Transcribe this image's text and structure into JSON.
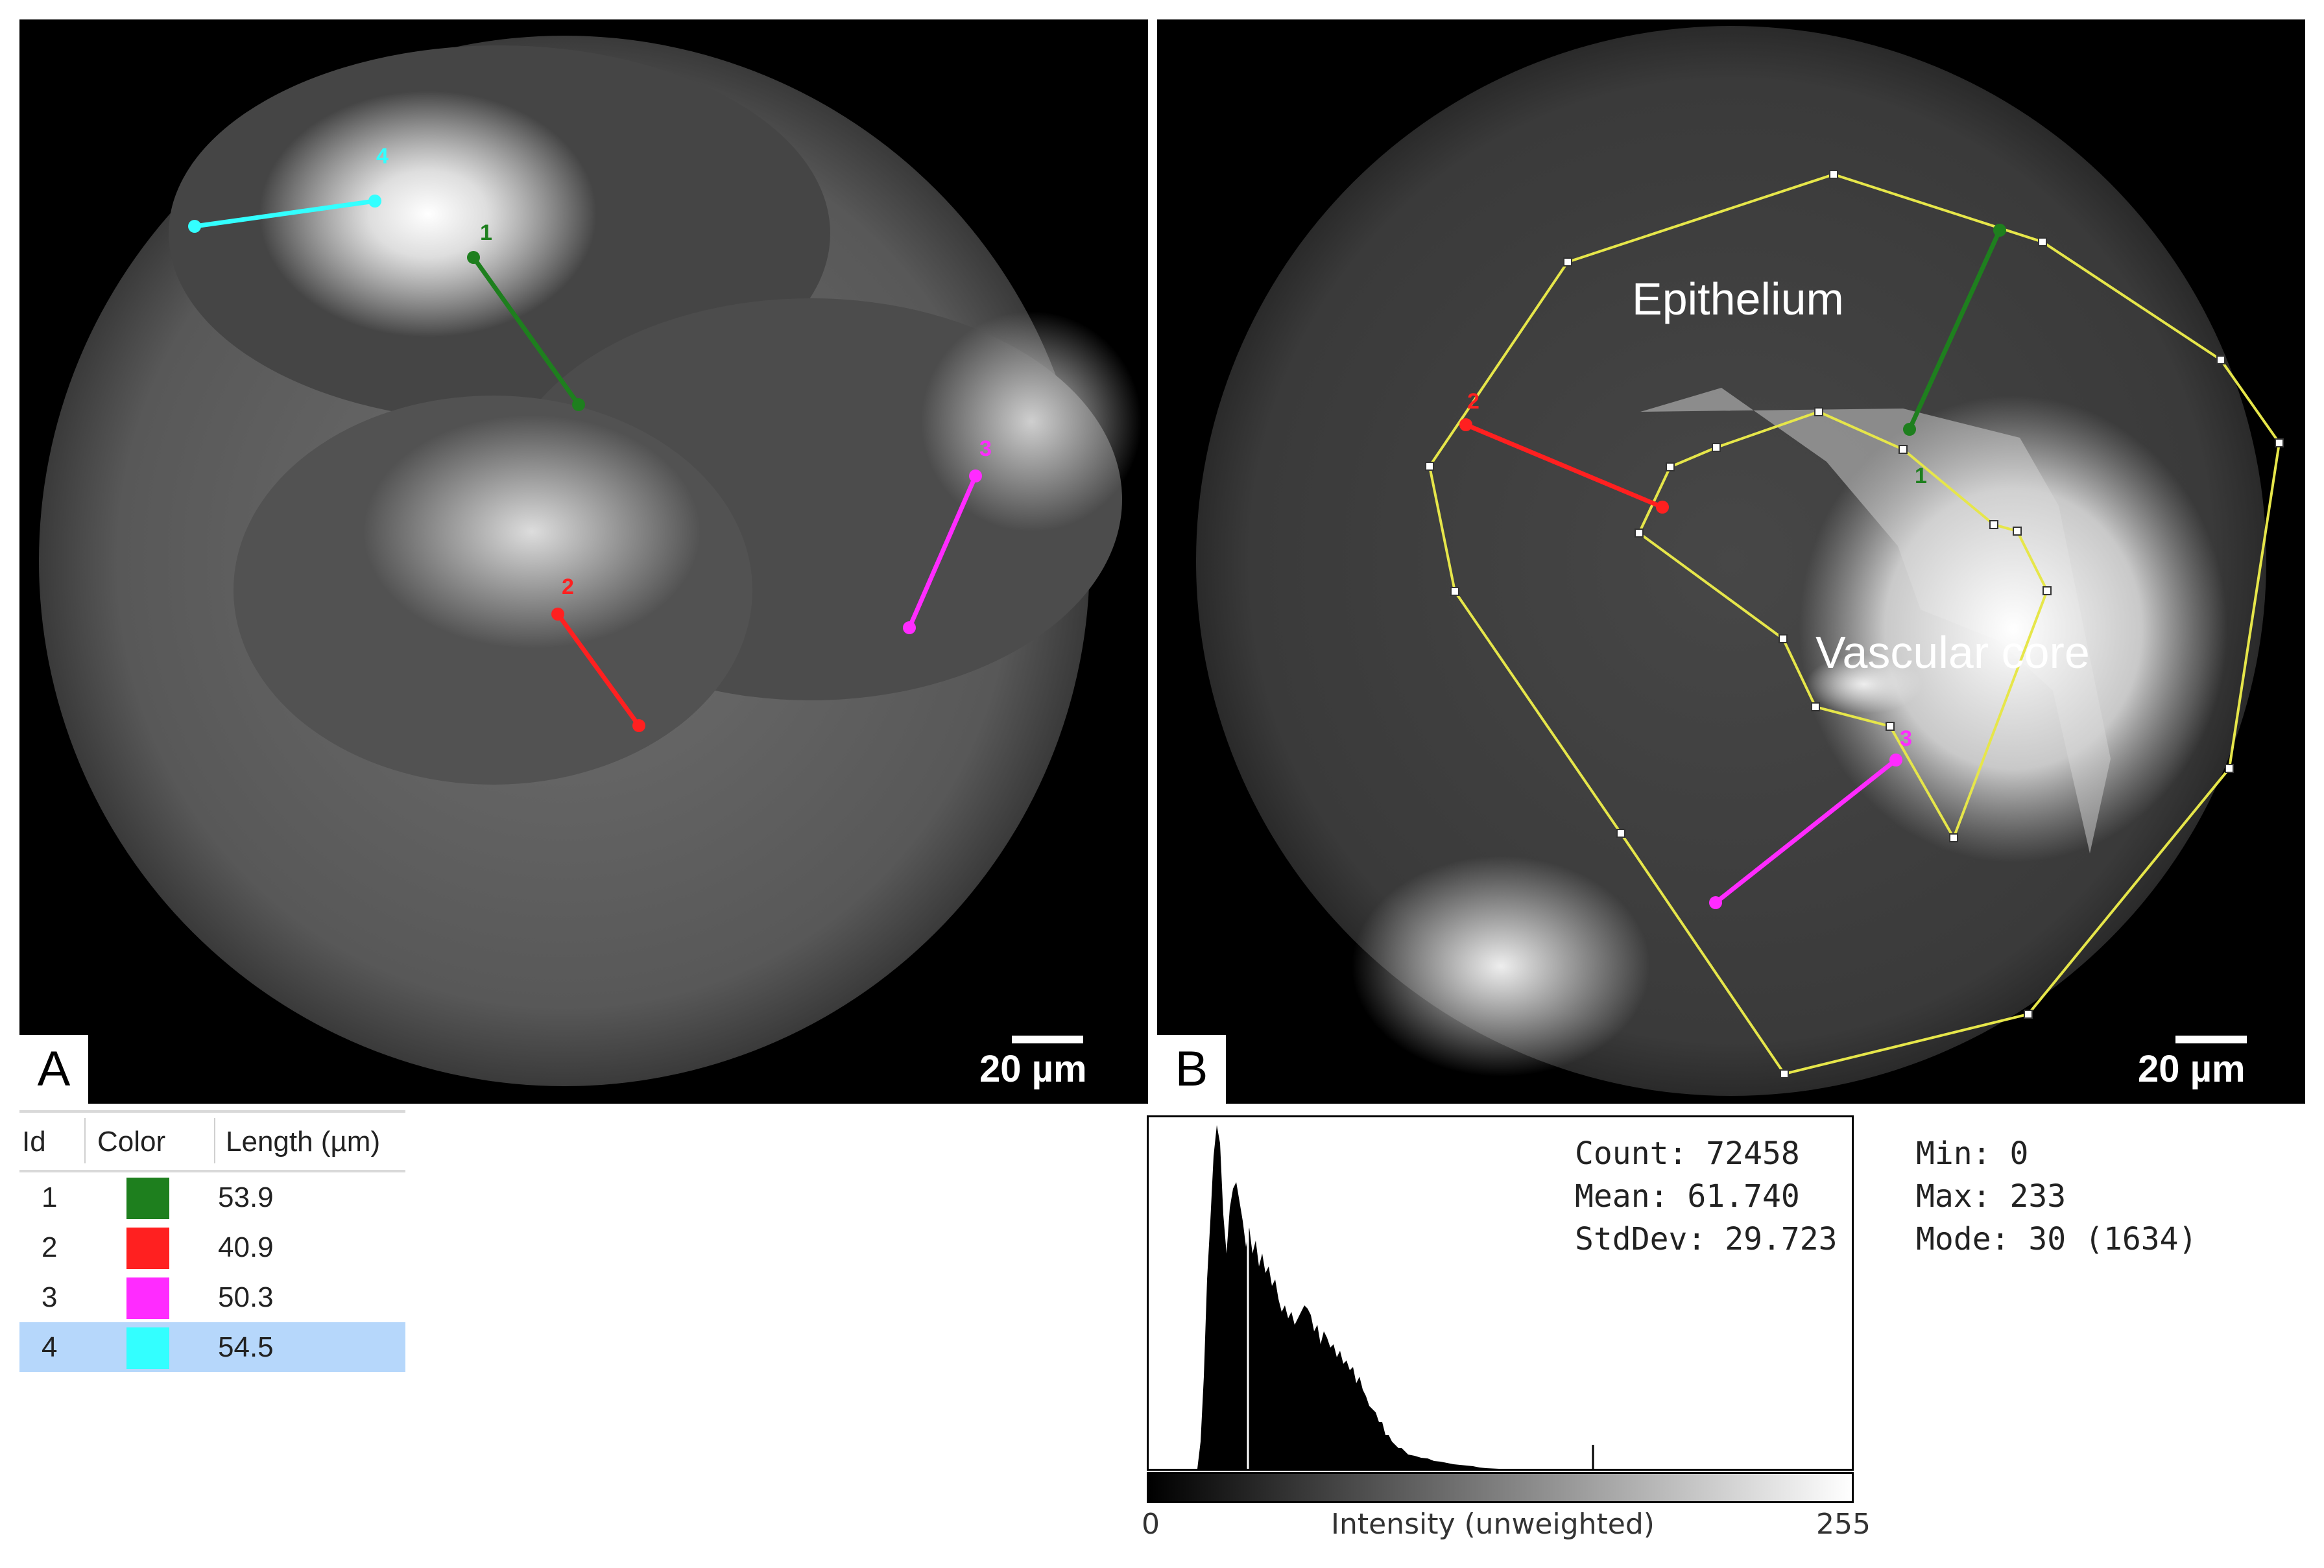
{
  "panels": {
    "a": {
      "letter": "A",
      "scale_label": "20 µm"
    },
    "b": {
      "letter": "B",
      "scale_label": "20 µm",
      "regions": {
        "epithelium": "Epithelium",
        "vascular_core": "Vascular core"
      }
    }
  },
  "measurements": {
    "headers": {
      "id": "Id",
      "color": "Color",
      "length": "Length (µm)"
    },
    "rows": [
      {
        "id": "1",
        "color": "#1e7f1e",
        "length": "53.9"
      },
      {
        "id": "2",
        "color": "#ff2020",
        "length": "40.9"
      },
      {
        "id": "3",
        "color": "#ff2bff",
        "length": "50.3"
      },
      {
        "id": "4",
        "color": "#33ffff",
        "length": "54.5"
      }
    ],
    "selected_row": "4"
  },
  "histogram": {
    "axis_min": "0",
    "axis_max": "255",
    "axis_label": "Intensity (unweighted)",
    "stats": {
      "count": "Count: 72458",
      "mean": "Mean: 61.740",
      "stddev": "StdDev: 29.723",
      "min": "Min: 0",
      "max": "Max: 233",
      "mode": "Mode: 30 (1634)"
    }
  },
  "colors": {
    "roi_outline": "#e6e64a",
    "green": "#1e7f1e",
    "red": "#ff2020",
    "magenta": "#ff2bff",
    "cyan": "#33ffff"
  }
}
